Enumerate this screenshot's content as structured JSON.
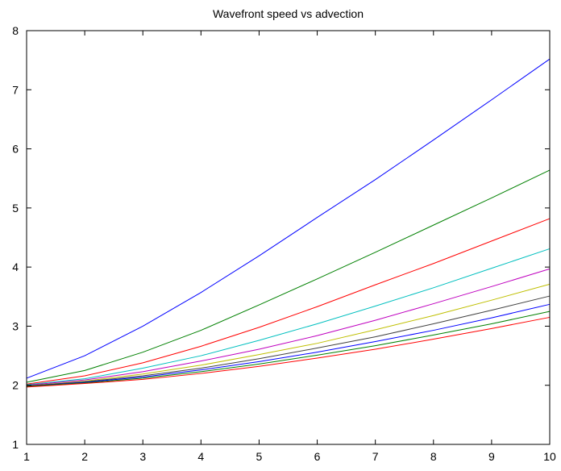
{
  "chart_data": {
    "type": "line",
    "title": "Wavefront speed vs advection",
    "xlabel": "",
    "ylabel": "",
    "xlim": [
      1,
      10
    ],
    "ylim": [
      1,
      8
    ],
    "x_ticks": [
      1,
      2,
      3,
      4,
      5,
      6,
      7,
      8,
      9,
      10
    ],
    "y_ticks": [
      1,
      2,
      3,
      4,
      5,
      6,
      7,
      8
    ],
    "grid": false,
    "legend": "none",
    "x": [
      1,
      2,
      3,
      4,
      5,
      6,
      7,
      8,
      9,
      10
    ],
    "series": [
      {
        "color": "#0000ff",
        "values": [
          2.12,
          2.5,
          3.0,
          3.57,
          4.19,
          4.84,
          5.48,
          6.15,
          6.83,
          7.52
        ]
      },
      {
        "color": "#008000",
        "values": [
          2.05,
          2.25,
          2.56,
          2.93,
          3.36,
          3.8,
          4.25,
          4.71,
          5.17,
          5.64
        ]
      },
      {
        "color": "#ff0000",
        "values": [
          2.02,
          2.16,
          2.38,
          2.66,
          2.98,
          3.33,
          3.7,
          4.06,
          4.44,
          4.82
        ]
      },
      {
        "color": "#00bfbf",
        "values": [
          2.01,
          2.11,
          2.29,
          2.5,
          2.76,
          3.04,
          3.34,
          3.65,
          3.98,
          4.31
        ]
      },
      {
        "color": "#bf00bf",
        "values": [
          2.0,
          2.09,
          2.23,
          2.41,
          2.61,
          2.84,
          3.1,
          3.38,
          3.67,
          3.97
        ]
      },
      {
        "color": "#bfbf00",
        "values": [
          1.99,
          2.07,
          2.19,
          2.34,
          2.52,
          2.71,
          2.94,
          3.18,
          3.44,
          3.71
        ]
      },
      {
        "color": "#404040",
        "values": [
          1.99,
          2.06,
          2.16,
          2.29,
          2.45,
          2.63,
          2.82,
          3.04,
          3.27,
          3.51
        ]
      },
      {
        "color": "#0000ff",
        "values": [
          1.98,
          2.05,
          2.14,
          2.26,
          2.4,
          2.56,
          2.74,
          2.93,
          3.14,
          3.37
        ]
      },
      {
        "color": "#008000",
        "values": [
          1.98,
          2.04,
          2.12,
          2.23,
          2.36,
          2.51,
          2.67,
          2.85,
          3.04,
          3.25
        ]
      },
      {
        "color": "#ff0000",
        "values": [
          1.97,
          2.03,
          2.1,
          2.2,
          2.32,
          2.46,
          2.61,
          2.78,
          2.96,
          3.15
        ]
      }
    ]
  }
}
